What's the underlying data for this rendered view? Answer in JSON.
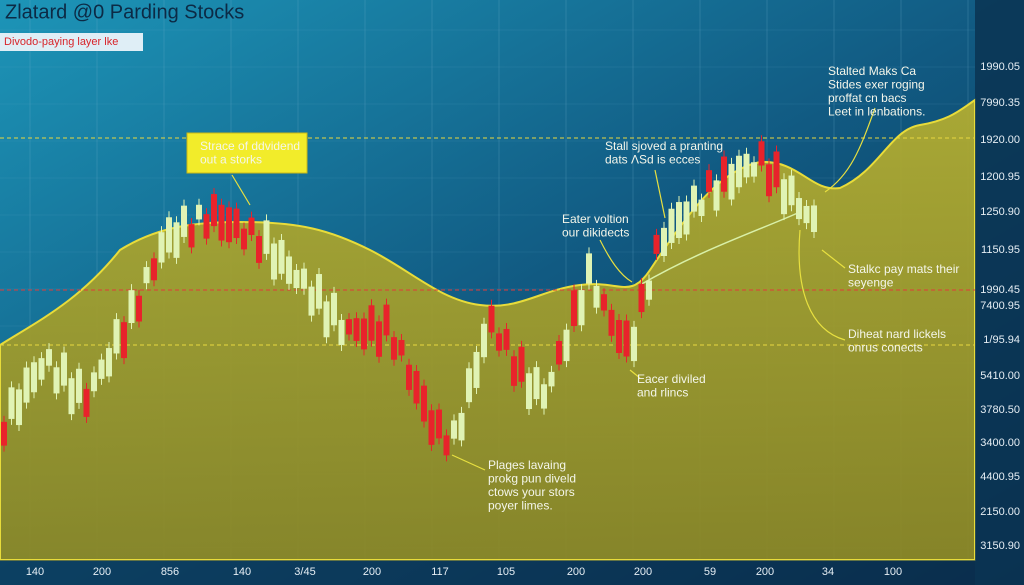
{
  "header": {
    "title": "Zlatard @0 Parding Stocks",
    "subtitle": "Divodo-paying layer lke"
  },
  "axis": {
    "right_labels": [
      "1990.05",
      "7990.35",
      "1920.00",
      "1200.95",
      "1250.90",
      "1150.95",
      "1990.45",
      "7400.95",
      "1/95.94",
      "5410.00",
      "3780.50",
      "3400.00",
      "4400.95",
      "2150.00",
      "3150.90"
    ],
    "bottom_labels": [
      "140",
      "200",
      "856",
      "140",
      "3/45",
      "200",
      "117",
      "105",
      "200",
      "200",
      "59",
      "200",
      "34",
      "100"
    ]
  },
  "annotations": [
    {
      "lines": [
        "Strace of ddvidend",
        "out a storks"
      ]
    },
    {
      "lines": [
        "Stall sjoved a pranting",
        "dats ΛSd is ecces"
      ]
    },
    {
      "lines": [
        "Eater voltion",
        "our dikidects"
      ]
    },
    {
      "lines": [
        "Stalted Maks Ca",
        "Stides exer roging",
        "proffat cn bacs",
        "Leet in lenbations."
      ]
    },
    {
      "lines": [
        "Stalkc pay mats their",
        "seyenge"
      ]
    },
    {
      "lines": [
        "Diheat nard lickels",
        "onrus conects"
      ]
    },
    {
      "lines": [
        "Eacer diviled",
        "and rlincs"
      ]
    },
    {
      "lines": [
        "Plages lavaing",
        "prokg pun diveld",
        "ctows your stors",
        "poyer limes."
      ]
    }
  ]
}
